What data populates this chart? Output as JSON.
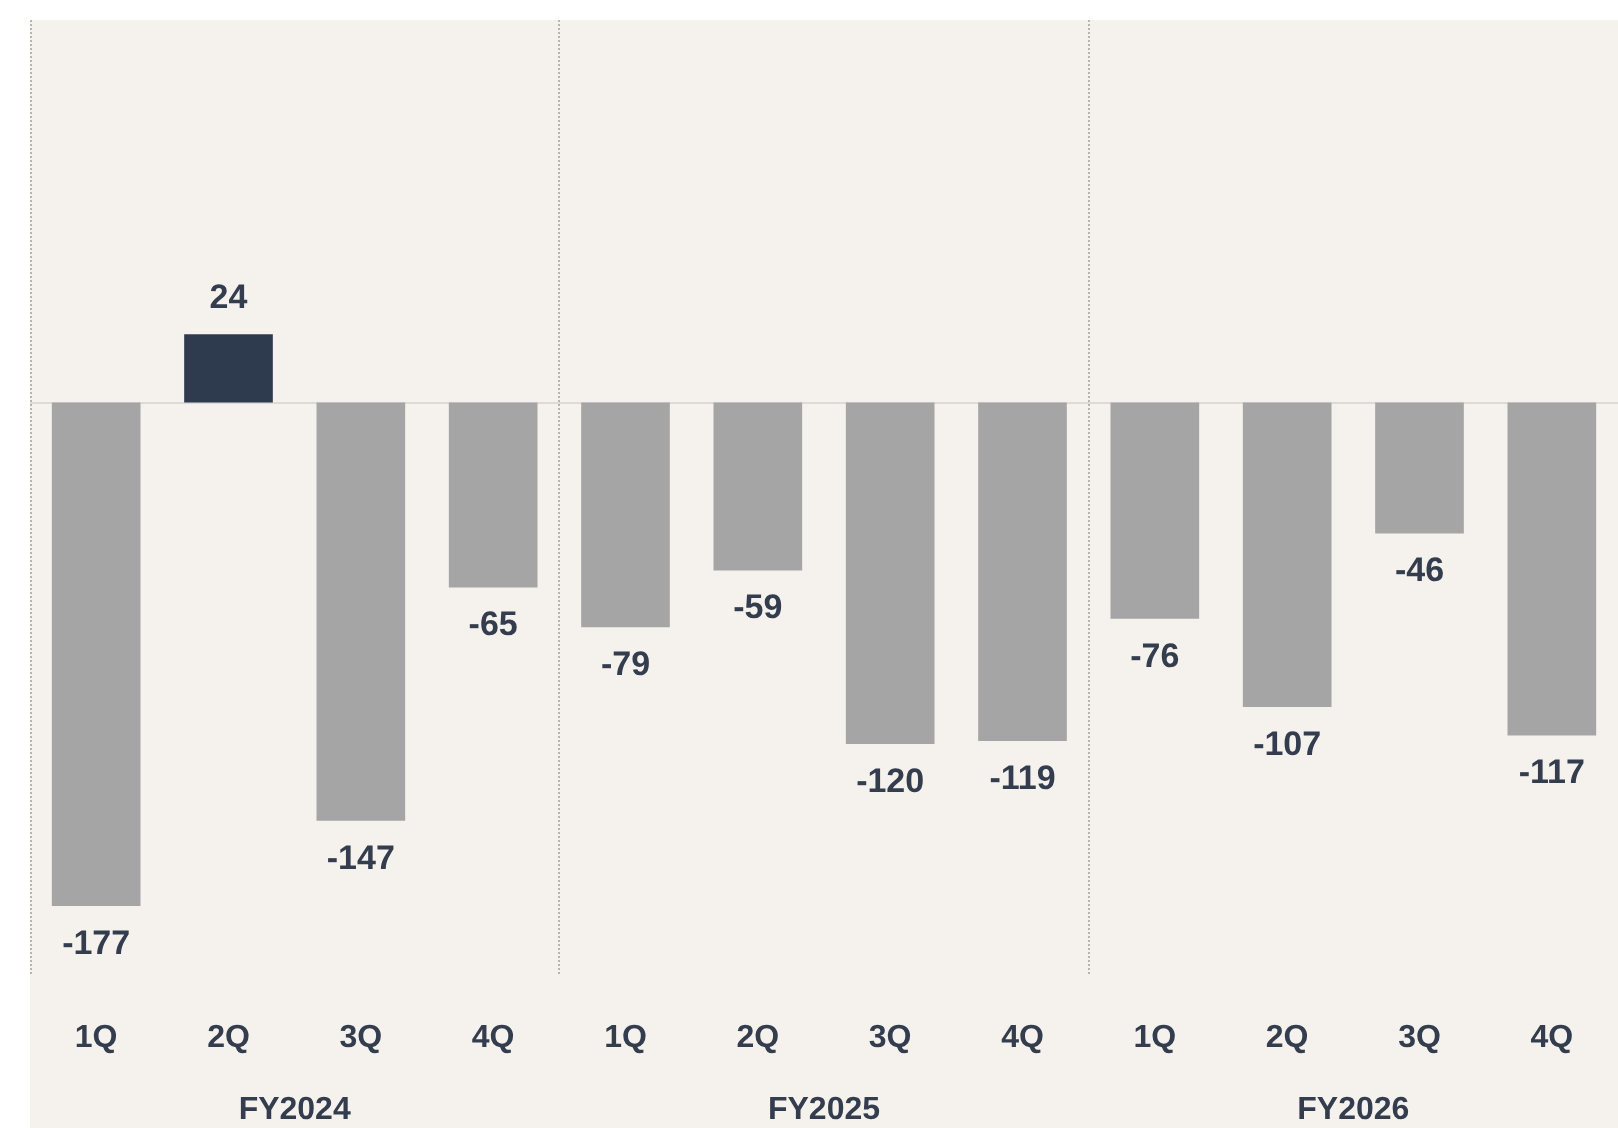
{
  "chart_data": {
    "type": "bar",
    "categories": [
      "1Q",
      "2Q",
      "3Q",
      "4Q",
      "1Q",
      "2Q",
      "3Q",
      "4Q",
      "1Q",
      "2Q",
      "3Q",
      "4Q"
    ],
    "values": [
      -177,
      24,
      -147,
      -65,
      -79,
      -59,
      -120,
      -119,
      -76,
      -107,
      -46,
      -117
    ],
    "colors": [
      "#a5a5a5",
      "#2e3b4f",
      "#a5a5a5",
      "#a5a5a5",
      "#a5a5a5",
      "#a5a5a5",
      "#a5a5a5",
      "#a5a5a5",
      "#a5a5a5",
      "#a5a5a5",
      "#a5a5a5",
      "#a5a5a5"
    ],
    "annotations": [
      "FY2024",
      "FY2025",
      "FY2026"
    ],
    "data_labels": true
  }
}
